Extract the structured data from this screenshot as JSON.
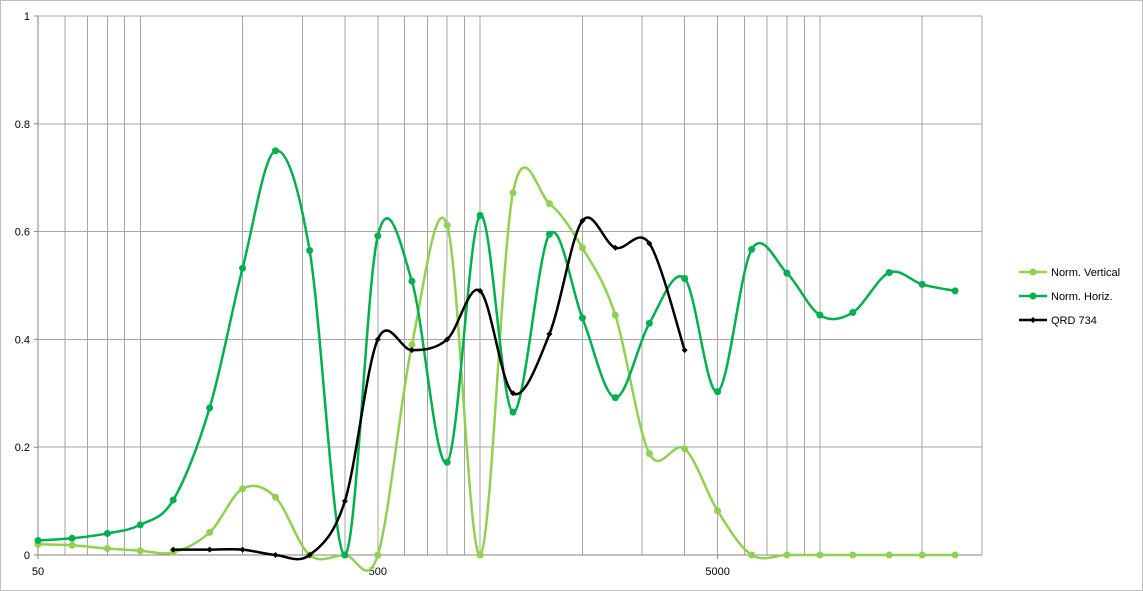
{
  "chart_data": {
    "type": "line",
    "title": "",
    "xlabel": "",
    "ylabel": "",
    "xscale": "log",
    "xlim": [
      50,
      30000
    ],
    "ylim": [
      0,
      1
    ],
    "x_ticks": [
      {
        "value": 50,
        "label": "50"
      },
      {
        "value": 500,
        "label": "500"
      },
      {
        "value": 5000,
        "label": "5000"
      }
    ],
    "y_ticks": [
      {
        "value": 0,
        "label": "0"
      },
      {
        "value": 0.2,
        "label": "0.2"
      },
      {
        "value": 0.4,
        "label": "0.4"
      },
      {
        "value": 0.6,
        "label": "0.6"
      },
      {
        "value": 0.8,
        "label": "0.8"
      },
      {
        "value": 1,
        "label": "1"
      }
    ],
    "grid": true,
    "legend_position": "right",
    "series": [
      {
        "name": "Norm. Vertical",
        "color": "#92d050",
        "marker": "circle",
        "x": [
          50,
          63,
          80,
          100,
          125,
          160,
          200,
          250,
          315,
          400,
          500,
          630,
          800,
          1000,
          1250,
          1600,
          2000,
          2500,
          3150,
          4000,
          5000,
          6300,
          8000,
          10000,
          12500,
          16000,
          20000,
          25000
        ],
        "y": [
          0.02,
          0.018,
          0.012,
          0.008,
          0.005,
          0.042,
          0.123,
          0.107,
          0.0,
          0.0,
          0.0,
          0.39,
          0.612,
          0.0,
          0.672,
          0.652,
          0.57,
          0.445,
          0.188,
          0.197,
          0.082,
          0.0,
          0.0,
          0.0,
          0.0,
          0.0,
          0.0,
          0.0
        ]
      },
      {
        "name": "Norm. Horiz.",
        "color": "#00b050",
        "marker": "circle",
        "x": [
          50,
          63,
          80,
          100,
          125,
          160,
          200,
          250,
          315,
          400,
          500,
          630,
          800,
          1000,
          1250,
          1600,
          2000,
          2500,
          3150,
          4000,
          5000,
          6300,
          8000,
          10000,
          12500,
          16000,
          20000,
          25000
        ],
        "y": [
          0.027,
          0.031,
          0.04,
          0.056,
          0.102,
          0.273,
          0.532,
          0.75,
          0.565,
          0.0,
          0.592,
          0.508,
          0.172,
          0.63,
          0.265,
          0.595,
          0.44,
          0.292,
          0.43,
          0.513,
          0.303,
          0.567,
          0.523,
          0.445,
          0.45,
          0.524,
          0.502,
          0.49
        ]
      },
      {
        "name": "QRD 734",
        "color": "#000000",
        "marker": "diamond",
        "x": [
          125,
          160,
          200,
          250,
          315,
          400,
          500,
          630,
          800,
          1000,
          1250,
          1600,
          2000,
          2500,
          3150,
          4000
        ],
        "y": [
          0.01,
          0.01,
          0.01,
          0.0,
          0.0,
          0.1,
          0.4,
          0.38,
          0.4,
          0.49,
          0.3,
          0.41,
          0.62,
          0.57,
          0.578,
          0.38
        ]
      }
    ]
  }
}
